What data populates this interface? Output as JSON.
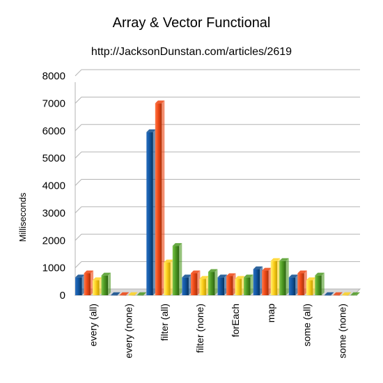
{
  "chart_data": {
    "type": "bar",
    "title": "Array & Vector Functional",
    "subtitle": "http://JacksonDunstan.com/articles/2619",
    "ylabel": "Milliseconds",
    "xlabel": "",
    "ylim": [
      0,
      8000
    ],
    "yticks": [
      0,
      1000,
      2000,
      3000,
      4000,
      5000,
      6000,
      7000,
      8000
    ],
    "grid": true,
    "legend": "none",
    "categories": [
      "every (all)",
      "every (none)",
      "filter (all)",
      "filter (none)",
      "forEach",
      "map",
      "some (all)",
      "some (none)"
    ],
    "series": [
      {
        "color": "#0a4a8c",
        "values": [
          650,
          5,
          5950,
          650,
          650,
          950,
          650,
          5
        ]
      },
      {
        "color": "#ee4411",
        "values": [
          800,
          5,
          7000,
          800,
          700,
          900,
          800,
          5
        ]
      },
      {
        "color": "#ffd320",
        "values": [
          550,
          5,
          1200,
          600,
          600,
          1250,
          550,
          5
        ]
      },
      {
        "color": "#4e9a23",
        "values": [
          720,
          5,
          1800,
          850,
          650,
          1250,
          720,
          5
        ]
      }
    ]
  }
}
